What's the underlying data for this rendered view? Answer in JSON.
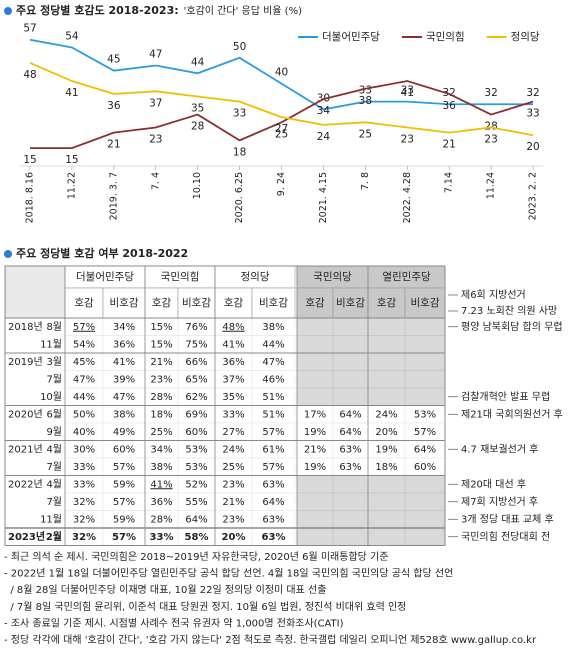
{
  "chart_data": {
    "type": "line",
    "title": "주요 정당별 호감도 2018-2023:",
    "subtitle": "'호감이 간다' 응답 비율 (%)",
    "categories": [
      "2018. 8.16",
      "11.22",
      "2019. 3. 7",
      "7. 4",
      "10.10",
      "2020. 6.25",
      "9. 24",
      "2021. 4.15",
      "7. 8",
      "2022. 4.28",
      "7.14",
      "11.24",
      "2023. 2. 2"
    ],
    "series": [
      {
        "name": "더불어민주당",
        "color": "#2b9be0",
        "values": [
          57,
          54,
          45,
          47,
          44,
          50,
          40,
          30,
          33,
          33,
          32,
          32,
          32
        ]
      },
      {
        "name": "국민의힘",
        "color": "#8b2d2d",
        "values": [
          15,
          15,
          21,
          23,
          28,
          18,
          25,
          34,
          38,
          41,
          36,
          28,
          33
        ]
      },
      {
        "name": "정의당",
        "color": "#f0be00",
        "values": [
          48,
          41,
          36,
          37,
          35,
          33,
          27,
          24,
          25,
          23,
          21,
          23,
          20
        ]
      }
    ],
    "ylim": [
      10,
      60
    ],
    "legend": "top-right"
  },
  "table": {
    "title": "주요 정당별 호감 여부 2018-2022",
    "parties": [
      "더불어민주당",
      "국민의힘",
      "정의당",
      "국민의당",
      "열린민주당"
    ],
    "subheaders": [
      "호감",
      "비호감"
    ],
    "header_notes": [
      "제6회 지방선거",
      "7.23 노회찬 의원 사망"
    ],
    "rows": [
      {
        "year": "2018년",
        "month": "8월",
        "cells": [
          "57%",
          "34%",
          "15%",
          "76%",
          "48%",
          "38%",
          null,
          null,
          null,
          null
        ],
        "underlined": [
          0,
          4
        ],
        "note": "평양 남북회담 합의 무렵"
      },
      {
        "month": "11월",
        "cells": [
          "54%",
          "36%",
          "15%",
          "75%",
          "41%",
          "44%",
          null,
          null,
          null,
          null
        ]
      },
      {
        "year": "2019년",
        "month": "3월",
        "cells": [
          "45%",
          "41%",
          "21%",
          "66%",
          "36%",
          "47%",
          null,
          null,
          null,
          null
        ]
      },
      {
        "month": "7월",
        "cells": [
          "47%",
          "39%",
          "23%",
          "65%",
          "37%",
          "46%",
          null,
          null,
          null,
          null
        ]
      },
      {
        "month": "10월",
        "cells": [
          "44%",
          "47%",
          "28%",
          "62%",
          "35%",
          "51%",
          null,
          null,
          null,
          null
        ],
        "note": "검찰개혁안 발표 무렵"
      },
      {
        "year": "2020년",
        "month": "6월",
        "cells": [
          "50%",
          "38%",
          "18%",
          "69%",
          "33%",
          "51%",
          "17%",
          "64%",
          "24%",
          "53%"
        ],
        "note": "제21대 국회의원선거 후"
      },
      {
        "month": "9월",
        "cells": [
          "40%",
          "49%",
          "25%",
          "60%",
          "27%",
          "57%",
          "19%",
          "64%",
          "20%",
          "57%"
        ]
      },
      {
        "year": "2021년",
        "month": "4월",
        "cells": [
          "30%",
          "60%",
          "34%",
          "53%",
          "24%",
          "61%",
          "21%",
          "63%",
          "19%",
          "64%"
        ],
        "note": "4.7 재보궐선거 후"
      },
      {
        "month": "7월",
        "cells": [
          "33%",
          "57%",
          "38%",
          "53%",
          "25%",
          "57%",
          "19%",
          "63%",
          "18%",
          "60%"
        ]
      },
      {
        "year": "2022년",
        "month": "4월",
        "cells": [
          "33%",
          "59%",
          "41%",
          "52%",
          "23%",
          "63%",
          null,
          null,
          null,
          null
        ],
        "underlined": [
          2
        ],
        "note": "제20대 대선 후"
      },
      {
        "month": "7월",
        "cells": [
          "32%",
          "57%",
          "36%",
          "55%",
          "21%",
          "64%",
          null,
          null,
          null,
          null
        ],
        "note": "제7회 지방선거 후"
      },
      {
        "month": "11월",
        "cells": [
          "32%",
          "59%",
          "28%",
          "64%",
          "23%",
          "63%",
          null,
          null,
          null,
          null
        ],
        "note": "3개 정당 대표 교체 후"
      },
      {
        "year": "2023년",
        "month": "2월",
        "cells": [
          "32%",
          "57%",
          "33%",
          "58%",
          "20%",
          "63%",
          null,
          null,
          null,
          null
        ],
        "note": "국민의힘 전당대회 전"
      }
    ]
  },
  "footnotes": [
    "- 최근 의석 순 제시. 국민의힘은 2018~2019년 자유한국당, 2020년 6월 미래통합당 기준",
    "- 2022년 1월 18일 더불어민주당 열린민주당 공식 합당 선언. 4월 18일 국민의힘 국민의당 공식 합당 선언",
    "  / 8월 28일 더불어민주당 이재명 대표, 10월 22일 정의당 이정미 대표 선출",
    "  / 7월 8일 국민의힘 윤리위, 이준석 대표 당원권 정지. 10월 6일 법원, 정진석 비대위 효력 인정",
    "- 조사 종료일 기준 제시. 시점별 사례수 전국 유권자 약 1,000명 전화조사(CATI)",
    "- 정당 각각에 대해 '호감이 간다', '호감 가지 않는다' 2점 척도로 측정. 한국갤럽 데일리 오피니언 제528호 www.gallup.co.kr"
  ]
}
